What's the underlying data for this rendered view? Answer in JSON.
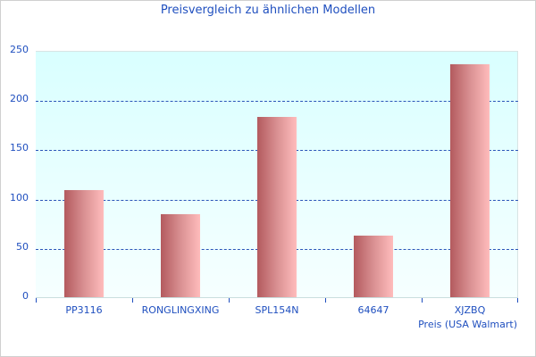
{
  "chart_data": {
    "type": "bar",
    "title": "Preisvergleich zu ähnlichen Modellen",
    "xlabel": "Preis (USA Walmart)",
    "ylabel": "",
    "categories": [
      "PP3116",
      "RONGLINGXING",
      "SPL154N",
      "64647",
      "XJZBQ"
    ],
    "values": [
      110,
      85,
      184,
      63,
      237
    ],
    "ylim": [
      0,
      250
    ],
    "yticks": [
      0,
      50,
      100,
      150,
      200,
      250
    ],
    "grid": "horizontal dashed",
    "legend": "none",
    "colors": {
      "bar_dark": "#b35a5e",
      "bar_light": "#ffbcbc",
      "text": "#1f4fbf",
      "grid": "#2a55b8",
      "plot_bg_top": "#d9ffff",
      "plot_bg_bottom": "#f6ffff"
    }
  },
  "labels": {
    "title": "Preisvergleich zu ähnlichen Modellen",
    "x_axis_title": "Preis (USA Walmart)",
    "yticks": [
      "0",
      "50",
      "100",
      "150",
      "200",
      "250"
    ],
    "categories": [
      "PP3116",
      "RONGLINGXING",
      "SPL154N",
      "64647",
      "XJZBQ"
    ]
  }
}
